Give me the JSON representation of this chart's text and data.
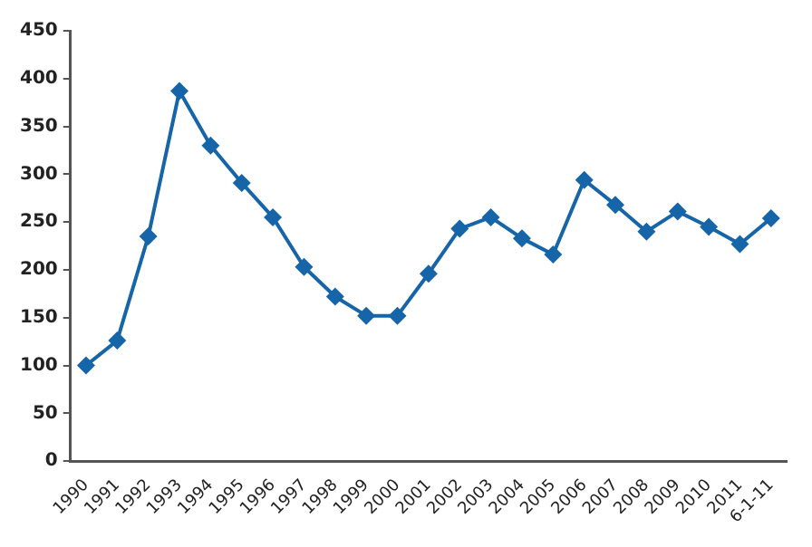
{
  "chart_data": {
    "type": "line",
    "categories": [
      "1990",
      "1991",
      "1992",
      "1993",
      "1994",
      "1995",
      "1996",
      "1997",
      "1998",
      "1999",
      "2000",
      "2001",
      "2002",
      "2003",
      "2004",
      "2005",
      "2006",
      "2007",
      "2008",
      "2009",
      "2010",
      "2011",
      "6-1-11"
    ],
    "series": [
      {
        "color": "#1565a8",
        "values": [
          100,
          126,
          235,
          387,
          330,
          291,
          255,
          203,
          172,
          152,
          152,
          196,
          243,
          255,
          233,
          216,
          294,
          268,
          240,
          261,
          245,
          227,
          254
        ]
      }
    ],
    "ylim": [
      0,
      450
    ],
    "yticks": [
      0,
      50,
      100,
      150,
      200,
      250,
      300,
      350,
      400,
      450
    ],
    "grid": false,
    "legend": false,
    "marker": "diamond",
    "line_style": "solid"
  }
}
